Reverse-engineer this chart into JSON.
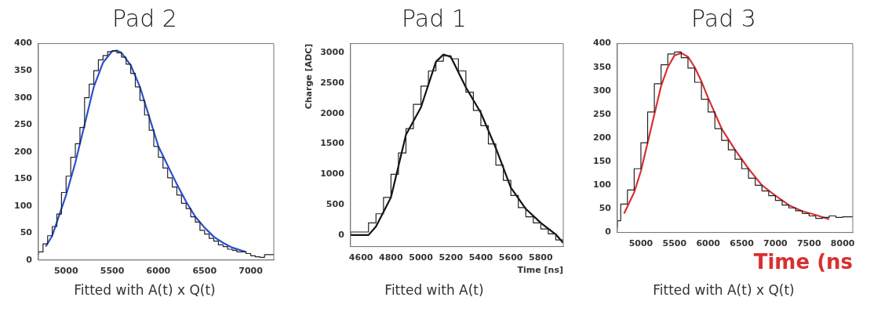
{
  "chart_data": [
    {
      "type": "step",
      "title": "Pad 2",
      "annotations": [
        "Fitted with A(t) x Q(t)"
      ],
      "xlim": [
        4700,
        7250
      ],
      "xticks": [
        5000,
        5500,
        6000,
        6500,
        7000
      ],
      "ylim": [
        0,
        400
      ],
      "yticks": [
        0,
        50,
        100,
        150,
        200,
        250,
        300,
        350,
        400
      ],
      "grid": false,
      "legend": false,
      "marker": "none",
      "line_style": "solid",
      "series": [
        {
          "type": "step",
          "color": "#222222",
          "x": [
            4700,
            4750,
            4800,
            4850,
            4900,
            4950,
            5000,
            5050,
            5100,
            5150,
            5200,
            5250,
            5300,
            5350,
            5400,
            5450,
            5500,
            5550,
            5600,
            5650,
            5700,
            5750,
            5800,
            5850,
            5900,
            5950,
            6000,
            6050,
            6100,
            6150,
            6200,
            6250,
            6300,
            6350,
            6400,
            6450,
            6500,
            6550,
            6600,
            6650,
            6700,
            6750,
            6800,
            6850,
            6900,
            6950,
            7000,
            7050,
            7100,
            7150,
            7200,
            7250
          ],
          "values": [
            10,
            15,
            30,
            45,
            62,
            85,
            125,
            155,
            190,
            215,
            245,
            300,
            325,
            350,
            370,
            378,
            385,
            387,
            383,
            375,
            362,
            345,
            320,
            295,
            268,
            240,
            210,
            190,
            170,
            152,
            135,
            120,
            105,
            95,
            80,
            70,
            55,
            48,
            40,
            35,
            28,
            25,
            20,
            18,
            15,
            15,
            12,
            8,
            6,
            5,
            10,
            10
          ]
        },
        {
          "type": "line",
          "color": "#2a4fd0",
          "x": [
            4780,
            4850,
            4900,
            5000,
            5100,
            5200,
            5300,
            5400,
            5500,
            5550,
            5600,
            5700,
            5800,
            5900,
            6000,
            6100,
            6200,
            6300,
            6400,
            6500,
            6600,
            6700,
            6800,
            6950
          ],
          "values": [
            25,
            45,
            70,
            120,
            180,
            250,
            320,
            365,
            386,
            387,
            383,
            360,
            320,
            265,
            210,
            175,
            140,
            108,
            80,
            60,
            43,
            32,
            23,
            15
          ]
        }
      ]
    },
    {
      "type": "step",
      "title": "Pad 1",
      "xlabel": "Time [ns]",
      "ylabel": "Charge [ADC]",
      "annotations": [
        "Fitted with A(t)"
      ],
      "xlim": [
        4530,
        5950
      ],
      "xticks": [
        4600,
        4800,
        5000,
        5200,
        5400,
        5600,
        5800
      ],
      "ylim": [
        -190,
        3150
      ],
      "yticks": [
        0,
        500,
        1000,
        1500,
        2000,
        2500,
        3000
      ],
      "grid": false,
      "legend": false,
      "marker": "none",
      "line_style": "solid",
      "series": [
        {
          "type": "step",
          "color": "#222222",
          "x": [
            4530,
            4650,
            4700,
            4750,
            4800,
            4850,
            4900,
            4950,
            5000,
            5050,
            5100,
            5150,
            5200,
            5250,
            5300,
            5350,
            5400,
            5450,
            5500,
            5550,
            5600,
            5650,
            5700,
            5750,
            5800,
            5850,
            5900,
            5950
          ],
          "values": [
            0,
            50,
            200,
            350,
            620,
            1000,
            1350,
            1750,
            2150,
            2450,
            2700,
            2860,
            2950,
            2900,
            2700,
            2350,
            2050,
            1800,
            1500,
            1150,
            900,
            650,
            450,
            300,
            200,
            100,
            20,
            -80
          ]
        },
        {
          "type": "line",
          "color": "#111111",
          "x": [
            4530,
            4650,
            4700,
            4800,
            4900,
            5000,
            5100,
            5150,
            5200,
            5300,
            5400,
            5500,
            5600,
            5700,
            5800,
            5900,
            5950
          ],
          "values": [
            0,
            0,
            140,
            620,
            1650,
            2100,
            2850,
            2970,
            2930,
            2430,
            2010,
            1430,
            780,
            430,
            200,
            10,
            -130
          ]
        }
      ]
    },
    {
      "type": "step",
      "title": "Pad 3",
      "xlabel": "Time (ns",
      "annotations": [
        "Fitted with A(t) x Q(t)"
      ],
      "xlim": [
        4650,
        8150
      ],
      "xticks": [
        5000,
        5500,
        6000,
        6500,
        7000,
        7500,
        8000
      ],
      "ylim": [
        0,
        400
      ],
      "yticks": [
        0,
        50,
        100,
        150,
        200,
        250,
        300,
        350,
        400
      ],
      "grid": false,
      "legend": false,
      "marker": "none",
      "line_style": "solid",
      "series": [
        {
          "type": "step",
          "color": "#222222",
          "x": [
            4650,
            4700,
            4800,
            4900,
            5000,
            5100,
            5200,
            5300,
            5400,
            5500,
            5600,
            5700,
            5800,
            5900,
            6000,
            6100,
            6200,
            6300,
            6400,
            6500,
            6600,
            6700,
            6800,
            6900,
            7000,
            7100,
            7200,
            7300,
            7400,
            7500,
            7600,
            7700,
            7800,
            7900,
            8000,
            8100,
            8150
          ],
          "values": [
            10,
            25,
            60,
            90,
            135,
            190,
            255,
            315,
            355,
            378,
            382,
            370,
            348,
            318,
            282,
            255,
            220,
            195,
            175,
            155,
            135,
            115,
            100,
            88,
            78,
            68,
            58,
            52,
            46,
            40,
            35,
            30,
            32,
            35,
            32,
            33,
            33
          ]
        },
        {
          "type": "line",
          "color": "#d93030",
          "x": [
            4750,
            4900,
            5000,
            5100,
            5200,
            5300,
            5400,
            5500,
            5600,
            5700,
            5800,
            5900,
            6000,
            6200,
            6400,
            6600,
            6800,
            7000,
            7200,
            7400,
            7600,
            7800
          ],
          "values": [
            40,
            85,
            130,
            190,
            250,
            310,
            350,
            375,
            380,
            372,
            350,
            320,
            285,
            220,
            175,
            135,
            100,
            78,
            58,
            45,
            37,
            28
          ]
        }
      ]
    }
  ]
}
